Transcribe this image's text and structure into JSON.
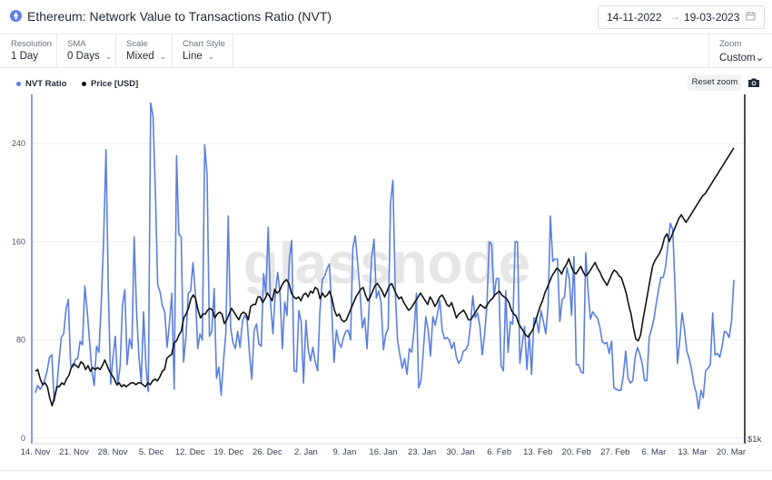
{
  "header": {
    "title": "Ethereum: Network Value to Transactions Ratio (NVT)",
    "date_from": "14-11-2022",
    "date_to": "19-03-2023",
    "arrow_glyph": "→"
  },
  "controls": [
    {
      "label": "Resolution",
      "value": "1 Day"
    },
    {
      "label": "SMA",
      "value": "0 Days"
    },
    {
      "label": "Scale",
      "value": "Mixed"
    },
    {
      "label": "Chart Style",
      "value": "Line"
    }
  ],
  "zoom": {
    "label": "Zoom",
    "value": "Custom"
  },
  "reset_zoom_label": "Reset zoom",
  "watermark": "glassnode",
  "colors": {
    "nvt": "#5b7fde",
    "price": "#111111",
    "accent": "#627eea"
  },
  "icons": {
    "eth": "ethereum-icon",
    "calendar": "calendar-icon",
    "camera": "camera-icon",
    "chevron": "chevron-down-icon"
  },
  "chart_data": {
    "type": "line",
    "legend": [
      "NVT Ratio",
      "Price [USD]"
    ],
    "legend_position": "top-left",
    "grid": true,
    "xlim": [
      "2022-11-14",
      "2023-03-20"
    ],
    "ylim": [
      0,
      280
    ],
    "yticks": [
      0,
      80,
      160,
      240
    ],
    "ytick_labels": [
      "0",
      "80",
      "160",
      "240"
    ],
    "xtick_labels": [
      "14. Nov",
      "21. Nov",
      "28. Nov",
      "5. Dec",
      "12. Dec",
      "19. Dec",
      "26. Dec",
      "2. Jan",
      "9. Jan",
      "16. Jan",
      "23. Jan",
      "30. Jan",
      "6. Feb",
      "13. Feb",
      "20. Feb",
      "27. Feb",
      "6. Mar",
      "13. Mar",
      "20. Mar"
    ],
    "right_axis_label": "$1k",
    "series": [
      {
        "name": "NVT Ratio",
        "color": "#5b7fde",
        "axis": "left",
        "values": [
          37,
          43,
          40,
          43,
          48,
          55,
          66,
          68,
          30,
          40,
          62,
          82,
          85,
          105,
          113,
          59,
          58,
          64,
          65,
          79,
          76,
          124,
          104,
          79,
          55,
          43,
          75,
          70,
          110,
          162,
          235,
          119,
          44,
          66,
          83,
          43,
          58,
          108,
          121,
          60,
          81,
          73,
          164,
          105,
          67,
          45,
          103,
          58,
          38,
          273,
          262,
          200,
          125,
          119,
          108,
          103,
          74,
          94,
          118,
          40,
          230,
          166,
          164,
          62,
          82,
          118,
          120,
          143,
          118,
          73,
          85,
          80,
          239,
          215,
          83,
          87,
          122,
          49,
          58,
          35,
          63,
          86,
          181,
          90,
          78,
          73,
          87,
          74,
          95,
          100,
          97,
          70,
          48,
          88,
          93,
          77,
          75,
          134,
          118,
          172,
          110,
          85,
          118,
          135,
          118,
          73,
          111,
          100,
          146,
          161,
          55,
          54,
          104,
          95,
          45,
          96,
          72,
          63,
          74,
          62,
          55,
          104,
          129,
          132,
          138,
          142,
          105,
          62,
          88,
          78,
          74,
          82,
          87,
          88,
          80,
          155,
          165,
          143,
          120,
          90,
          98,
          73,
          112,
          148,
          162,
          114,
          120,
          110,
          72,
          85,
          89,
          192,
          210,
          120,
          80,
          68,
          57,
          65,
          52,
          73,
          70,
          88,
          118,
          41,
          47,
          72,
          99,
          88,
          67,
          99,
          92,
          102,
          112,
          88,
          81,
          82,
          80,
          73,
          78,
          66,
          61,
          64,
          71,
          72,
          76,
          92,
          116,
          98,
          102,
          91,
          68,
          84,
          108,
          160,
          158,
          115,
          130,
          130,
          59,
          55,
          120,
          70,
          95,
          93,
          160,
          160,
          61,
          77,
          91,
          56,
          85,
          52,
          98,
          98,
          86,
          104,
          95,
          85,
          108,
          181,
          144,
          146,
          146,
          95,
          113,
          115,
          139,
          130,
          100,
          148,
          60,
          60,
          54,
          53,
          151,
          120,
          97,
          103,
          100,
          98,
          91,
          79,
          77,
          78,
          69,
          79,
          41,
          40,
          39,
          39,
          51,
          71,
          49,
          45,
          47,
          66,
          74,
          69,
          61,
          47,
          47,
          82,
          89,
          97,
          110,
          121,
          131,
          131,
          140,
          158,
          175,
          170,
          122,
          61,
          79,
          102,
          89,
          71,
          65,
          56,
          44,
          37,
          24,
          39,
          33,
          55,
          57,
          60,
          102,
          68,
          69,
          66,
          75,
          87,
          86,
          82,
          95,
          129
        ]
      },
      {
        "name": "Price [USD]",
        "color": "#111111",
        "axis": "right",
        "values": [
          1.25,
          1.26,
          1.21,
          1.18,
          1.19,
          1.17,
          1.11,
          1.07,
          1.12,
          1.17,
          1.17,
          1.19,
          1.18,
          1.21,
          1.23,
          1.27,
          1.29,
          1.28,
          1.27,
          1.3,
          1.29,
          1.26,
          1.28,
          1.25,
          1.27,
          1.26,
          1.27,
          1.26,
          1.28,
          1.31,
          1.28,
          1.25,
          1.23,
          1.21,
          1.18,
          1.19,
          1.17,
          1.18,
          1.17,
          1.18,
          1.19,
          1.19,
          1.18,
          1.19,
          1.19,
          1.18,
          1.17,
          1.19,
          1.18,
          1.2,
          1.21,
          1.2,
          1.22,
          1.25,
          1.26,
          1.32,
          1.33,
          1.34,
          1.4,
          1.41,
          1.44,
          1.46,
          1.53,
          1.55,
          1.58,
          1.63,
          1.65,
          1.63,
          1.57,
          1.53,
          1.55,
          1.55,
          1.57,
          1.58,
          1.57,
          1.53,
          1.55,
          1.56,
          1.55,
          1.5,
          1.52,
          1.55,
          1.58,
          1.56,
          1.54,
          1.52,
          1.55,
          1.56,
          1.55,
          1.52,
          1.59,
          1.6,
          1.6,
          1.64,
          1.64,
          1.61,
          1.63,
          1.66,
          1.64,
          1.62,
          1.68,
          1.66,
          1.67,
          1.7,
          1.72,
          1.73,
          1.71,
          1.66,
          1.64,
          1.63,
          1.64,
          1.62,
          1.65,
          1.66,
          1.64,
          1.67,
          1.66,
          1.69,
          1.68,
          1.63,
          1.66,
          1.64,
          1.65,
          1.67,
          1.63,
          1.57,
          1.54,
          1.55,
          1.52,
          1.51,
          1.52,
          1.55,
          1.58,
          1.61,
          1.64,
          1.66,
          1.68,
          1.69,
          1.65,
          1.62,
          1.64,
          1.67,
          1.7,
          1.71,
          1.69,
          1.67,
          1.64,
          1.67,
          1.7,
          1.71,
          1.68,
          1.65,
          1.63,
          1.64,
          1.61,
          1.59,
          1.57,
          1.58,
          1.6,
          1.62,
          1.64,
          1.66,
          1.64,
          1.62,
          1.6,
          1.64,
          1.62,
          1.59,
          1.61,
          1.64,
          1.65,
          1.63,
          1.6,
          1.59,
          1.61,
          1.57,
          1.53,
          1.55,
          1.56,
          1.57,
          1.55,
          1.52,
          1.52,
          1.54,
          1.56,
          1.58,
          1.6,
          1.59,
          1.58,
          1.6,
          1.62,
          1.63,
          1.65,
          1.66,
          1.67,
          1.65,
          1.64,
          1.63,
          1.61,
          1.57,
          1.55,
          1.54,
          1.5,
          1.48,
          1.46,
          1.44,
          1.43,
          1.45,
          1.47,
          1.51,
          1.55,
          1.59,
          1.62,
          1.66,
          1.69,
          1.72,
          1.75,
          1.77,
          1.79,
          1.78,
          1.76,
          1.79,
          1.81,
          1.84,
          1.8,
          1.77,
          1.76,
          1.78,
          1.8,
          1.77,
          1.75,
          1.76,
          1.78,
          1.8,
          1.82,
          1.79,
          1.77,
          1.74,
          1.72,
          1.7,
          1.73,
          1.76,
          1.78,
          1.77,
          1.75,
          1.74,
          1.7,
          1.66,
          1.6,
          1.55,
          1.48,
          1.42,
          1.41,
          1.44,
          1.52,
          1.59,
          1.66,
          1.73,
          1.8,
          1.83,
          1.85,
          1.87,
          1.9,
          1.95,
          1.97,
          1.93,
          1.96,
          1.99,
          2.02,
          2.05,
          2.07,
          2.05,
          2.03,
          2.05,
          2.07,
          2.09,
          2.11,
          2.13,
          2.15,
          2.17,
          2.18,
          2.2,
          2.22,
          2.24,
          2.26,
          2.28,
          2.3,
          2.32,
          2.34,
          2.36,
          2.38,
          2.4,
          2.42
        ]
      }
    ]
  }
}
